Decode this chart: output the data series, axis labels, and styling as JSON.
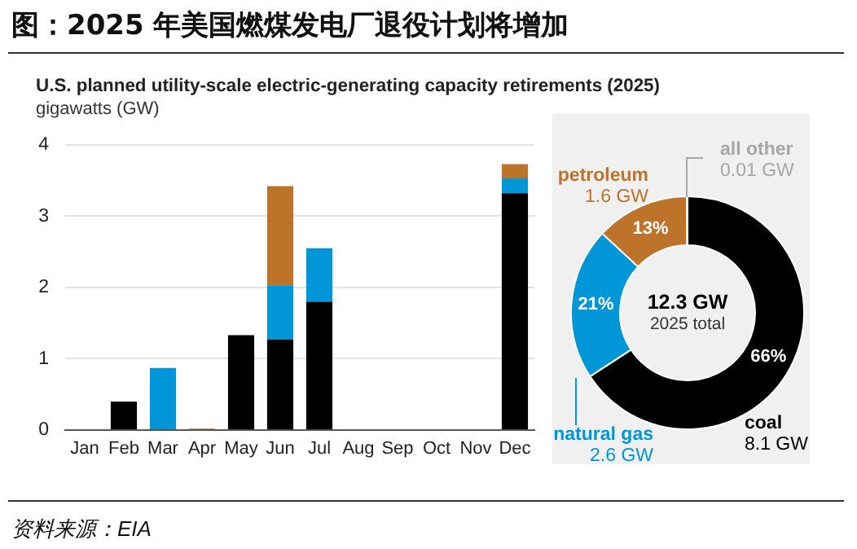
{
  "chart_data": [
    {
      "type": "bar",
      "title": "图：2025 年美国燃煤发电厂退役计划将增加",
      "subtitle": "U.S. planned utility-scale electric-generating capacity retirements (2025)",
      "ylabel": "gigawatts (GW)",
      "categories": [
        "Jan",
        "Feb",
        "Mar",
        "Apr",
        "May",
        "Jun",
        "Jul",
        "Aug",
        "Sep",
        "Oct",
        "Nov",
        "Dec"
      ],
      "stacked": true,
      "series": [
        {
          "color": "#000000",
          "values": [
            0,
            0.4,
            0,
            0,
            1.33,
            1.27,
            1.8,
            0,
            0,
            0,
            0,
            3.32
          ]
        },
        {
          "color": "#0096d7",
          "values": [
            0,
            0,
            0.87,
            0,
            0,
            0.76,
            0.75,
            0,
            0,
            0,
            0,
            0.21
          ]
        },
        {
          "color": "#bd732a",
          "values": [
            0,
            0,
            0,
            0.02,
            0,
            1.39,
            0,
            0,
            0,
            0,
            0,
            0.2
          ]
        }
      ],
      "ylim": [
        0,
        4
      ],
      "yticks": [
        0,
        1,
        2,
        3,
        4
      ],
      "grid": "y",
      "legend": false,
      "annotations": [
        "资料来源：EIA"
      ]
    },
    {
      "type": "donut",
      "title": "12.3 GW",
      "subtitle": "2025 total",
      "categories": [
        "coal",
        "natural gas",
        "petroleum",
        "all other"
      ],
      "values": [
        8.1,
        2.6,
        1.6,
        0.01
      ],
      "colors": [
        "#000000",
        "#0096d7",
        "#bd732a",
        "#a6a6a6"
      ],
      "value_labels": [
        "8.1 GW",
        "2.6 GW",
        "1.6 GW",
        "0.01 GW"
      ],
      "annotations": [
        "66%",
        "21%",
        "13%"
      ]
    }
  ]
}
